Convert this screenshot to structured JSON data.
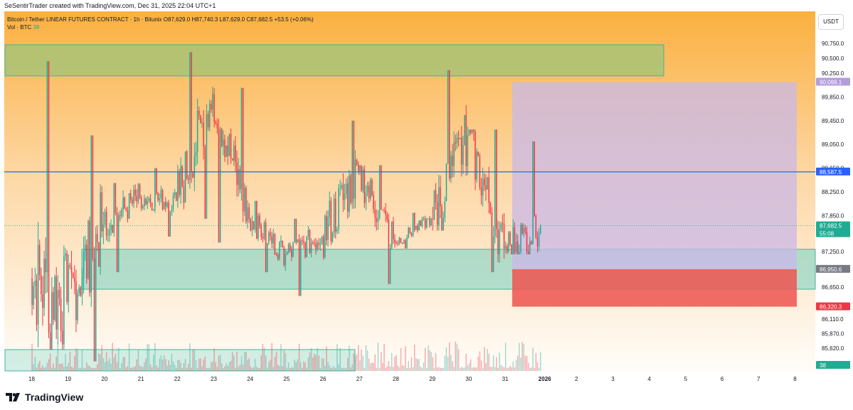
{
  "credit": "SeSentirTrader created with TradingView.com, Dec 31, 2025 22:04 UTC+1",
  "legend": {
    "symbol": "Bitcoin / Tether LINEAR FUTURES CONTRACT · 1h · Bitunix",
    "ohlc": "O87,629.0  H87,740.3  L87,629.0  C87,682.5  +53.5 (+0.06%)",
    "volume_label": "Vol · BTC",
    "volume_value": "38"
  },
  "currency_button": "USDT",
  "brand": "TradingView",
  "colors": {
    "up": "#22ab94",
    "down": "#f23645",
    "resistance_zone": "#9ec47a",
    "support_zone": "#7fd4c6",
    "stop_zone": "#ef5350",
    "target_zone": "#c9b8e8",
    "level_line": "#2962ff"
  },
  "chart_data": {
    "type": "candlestick",
    "symbol": "BTCUSDT.P",
    "timeframe": "1h",
    "y_ticks": [
      "90,750.0",
      "90,500.0",
      "90,250.0",
      "89,850.0",
      "89,450.0",
      "89,050.0",
      "88,650.0",
      "88,250.0",
      "87,850.0",
      "87,250.0",
      "86,650.0",
      "86,110.0",
      "85,870.0",
      "85,620.0"
    ],
    "x_ticks": [
      "18",
      "19",
      "20",
      "21",
      "22",
      "23",
      "24",
      "25",
      "26",
      "27",
      "28",
      "29",
      "30",
      "31",
      "2026",
      "2",
      "3",
      "4",
      "5",
      "6",
      "7",
      "8"
    ],
    "price_tags": [
      {
        "value": "90,099.1",
        "color": "#b39ddb"
      },
      {
        "value": "88,587.5",
        "color": "#2962ff"
      },
      {
        "value": "87,682.5",
        "sub": "55:08",
        "color": "#22ab94"
      },
      {
        "value": "86,950.6",
        "color": "#787b86"
      },
      {
        "value": "86,320.3",
        "color": "#f23645"
      },
      {
        "value": "38",
        "color": "#22ab94"
      }
    ],
    "zones": [
      {
        "name": "resistance",
        "from": 90250,
        "to": 90750
      },
      {
        "name": "support",
        "from": 86650,
        "to": 87250
      },
      {
        "name": "low-volume-zone",
        "from": null,
        "to": null
      }
    ],
    "position": {
      "entry": 86950.6,
      "target": 90099.1,
      "stop": 86320.3
    },
    "horizontal_line": 88587.5,
    "last_price": 87682.5,
    "daily_closes": [
      {
        "day": "18",
        "o": 86800,
        "h": 90450,
        "l": 85600,
        "c": 86400
      },
      {
        "day": "19",
        "o": 86400,
        "h": 89200,
        "l": 85400,
        "c": 87700
      },
      {
        "day": "20",
        "o": 87700,
        "h": 88400,
        "l": 86900,
        "c": 88150
      },
      {
        "day": "21",
        "o": 88150,
        "h": 88650,
        "l": 87500,
        "c": 88100
      },
      {
        "day": "22",
        "o": 88100,
        "h": 90600,
        "l": 87800,
        "c": 89900
      },
      {
        "day": "23",
        "o": 89900,
        "h": 90000,
        "l": 87400,
        "c": 87800
      },
      {
        "day": "24",
        "o": 87800,
        "h": 88100,
        "l": 86900,
        "c": 87200
      },
      {
        "day": "25",
        "o": 87200,
        "h": 87800,
        "l": 86500,
        "c": 87500
      },
      {
        "day": "26",
        "o": 87500,
        "h": 89450,
        "l": 86900,
        "c": 88600
      },
      {
        "day": "27",
        "o": 88600,
        "h": 88700,
        "l": 86700,
        "c": 87400
      },
      {
        "day": "28",
        "o": 87400,
        "h": 87900,
        "l": 87300,
        "c": 87800
      },
      {
        "day": "29",
        "o": 87800,
        "h": 90300,
        "l": 87600,
        "c": 89200
      },
      {
        "day": "30",
        "o": 89200,
        "h": 89300,
        "l": 86900,
        "c": 87300
      },
      {
        "day": "31",
        "o": 87300,
        "h": 89100,
        "l": 87200,
        "c": 87682.5
      }
    ]
  }
}
